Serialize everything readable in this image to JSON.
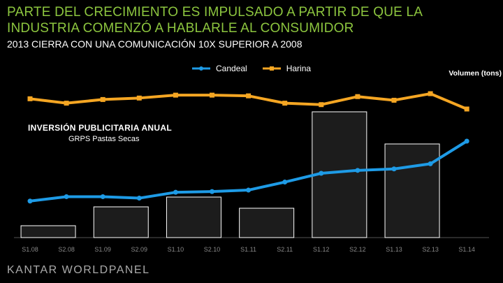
{
  "header": {
    "title_line1": "PARTE DEL CRECIMIENTO ES IMPULSADO A PARTIR DE QUE LA",
    "title_line2": "INDUSTRIA COMENZÓ A HABLARLE AL CONSUMIDOR",
    "subtitle": "2013 CIERRA CON UNA COMUNICACIÓN 10X SUPERIOR A 2008"
  },
  "chart_labels": {
    "right_axis_label": "Volumen (tons)",
    "bars_title": "INVERSIÓN PUBLICITARIA ANUAL",
    "bars_subtitle": "GRPS Pastas Secas"
  },
  "footer": {
    "logo_text": "KANTAR WORLDPANEL"
  },
  "colors": {
    "candeal": "#1e9be6",
    "harina": "#f5a623",
    "bar_fill": "#1c1c1c",
    "bar_stroke": "#ffffff",
    "title": "#8dc63f"
  },
  "chart_data": {
    "type": "bar+line",
    "title": "INVERSIÓN PUBLICITARIA ANUAL",
    "categories": [
      "S1.08",
      "S2.08",
      "S1.09",
      "S2.09",
      "S1.10",
      "S2.10",
      "S1.11",
      "S2.11",
      "S1.12",
      "S2.12",
      "S1.13",
      "S2.13",
      "S1.14"
    ],
    "bars": {
      "name": "GRPS Pastas Secas",
      "x_positions": [
        "S1.08",
        "S1.09",
        "S1.10",
        "S1.11",
        "S1.12",
        "S1.13"
      ],
      "values": [
        17,
        44,
        58,
        42,
        180,
        134
      ],
      "ylim": [
        0,
        200
      ]
    },
    "series": [
      {
        "name": "Candeal",
        "values": [
          50,
          56,
          56,
          54,
          62,
          63,
          65,
          76,
          88,
          92,
          94,
          101,
          132
        ]
      },
      {
        "name": "Harina",
        "values": [
          190,
          184,
          189,
          191,
          195,
          195,
          194,
          184,
          182,
          193,
          188,
          197,
          176
        ]
      }
    ],
    "ylim_lines": [
      0,
      220
    ],
    "ylabel": "Volumen (tons)",
    "legend_position": "top-center"
  }
}
